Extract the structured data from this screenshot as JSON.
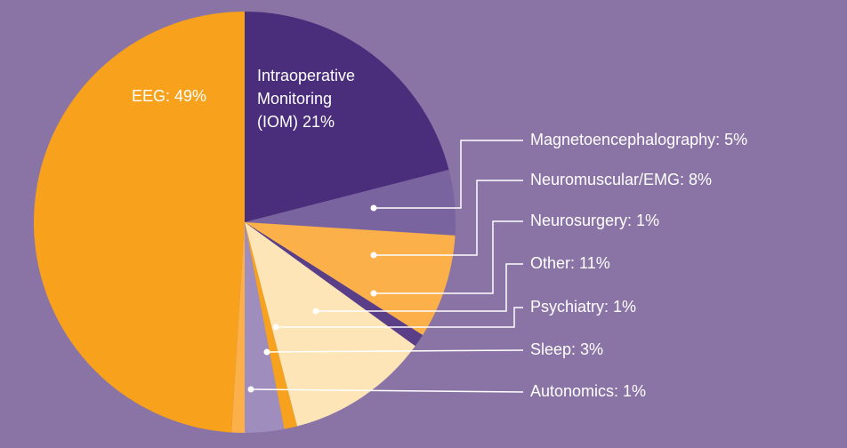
{
  "chart_data": {
    "type": "pie",
    "labels": [
      "Intraoperative Monitoring (IOM) 21%",
      "Magnetoencephalography: 5%",
      "Neuromuscular/EMG: 8%",
      "Neurosurgery: 1%",
      "Other: 11%",
      "Psychiatry: 1%",
      "Sleep: 3%",
      "Autonomics: 1%",
      "EEG: 49%"
    ],
    "values": [
      21,
      5,
      8,
      1,
      11,
      1,
      3,
      1,
      49
    ],
    "colors": [
      "#4b2e7b",
      "#7a649f",
      "#fcb04a",
      "#5a3e87",
      "#fde5b8",
      "#f7a21e",
      "#9f8dbd",
      "#fcb04a",
      "#f7a11c"
    ]
  }
}
